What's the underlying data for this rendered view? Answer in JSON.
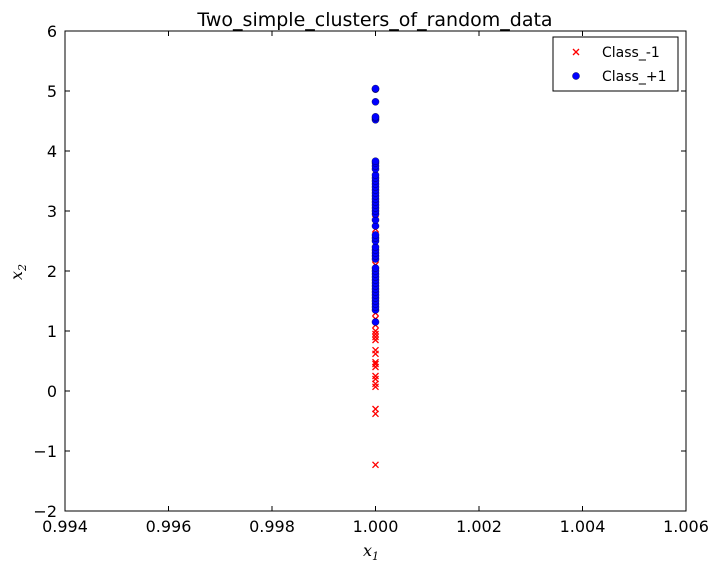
{
  "chart_data": {
    "type": "scatter",
    "title": "Two_simple_clusters_of_random_data",
    "xlabel": "x",
    "xlabel_sub": "1",
    "ylabel": "x",
    "ylabel_sub": "2",
    "xlim": [
      0.994,
      1.006
    ],
    "ylim": [
      -2,
      6
    ],
    "xticks": [
      0.994,
      0.996,
      0.998,
      1.0,
      1.002,
      1.004,
      1.006
    ],
    "xtick_labels": [
      "0.994",
      "0.996",
      "0.998",
      "1.000",
      "1.002",
      "1.004",
      "1.006"
    ],
    "yticks": [
      -2,
      -1,
      0,
      1,
      2,
      3,
      4,
      5,
      6
    ],
    "ytick_labels": [
      "−2",
      "−1",
      "0",
      "1",
      "2",
      "3",
      "4",
      "5",
      "6"
    ],
    "grid": false,
    "legend_position": "top-right",
    "series": [
      {
        "name": "Class_-1",
        "marker": "x",
        "color": "#ff0000",
        "x": [
          1,
          1,
          1,
          1,
          1,
          1,
          1,
          1,
          1,
          1,
          1,
          1,
          1,
          1,
          1,
          1,
          1,
          1,
          1,
          1,
          1,
          1,
          1,
          1,
          1,
          1,
          1,
          1,
          1,
          1,
          1,
          1,
          1,
          1,
          1,
          1,
          1,
          1,
          1,
          1
        ],
        "y": [
          -1.23,
          -0.38,
          -0.3,
          0.07,
          0.12,
          0.2,
          0.25,
          0.4,
          0.45,
          0.48,
          0.62,
          0.68,
          0.85,
          0.9,
          0.95,
          1.0,
          1.1,
          1.2,
          1.3,
          1.4,
          1.5,
          1.6,
          1.7,
          1.8,
          1.9,
          2.0,
          2.1,
          2.2,
          2.3,
          2.45,
          2.6,
          2.7,
          2.8,
          2.9,
          2.95,
          3.0,
          3.1,
          3.2,
          3.3,
          3.4
        ]
      },
      {
        "name": "Class_+1",
        "marker": "o",
        "color": "#0000ff",
        "x": [
          1,
          1,
          1,
          1,
          1,
          1,
          1,
          1,
          1,
          1,
          1,
          1,
          1,
          1,
          1,
          1,
          1,
          1,
          1,
          1,
          1,
          1,
          1,
          1,
          1,
          1,
          1,
          1,
          1,
          1,
          1,
          1,
          1,
          1,
          1,
          1,
          1,
          1,
          1,
          1,
          1,
          1,
          1,
          1,
          1,
          1,
          1,
          1,
          1,
          1
        ],
        "y": [
          1.15,
          1.35,
          1.4,
          1.45,
          1.5,
          1.55,
          1.6,
          1.65,
          1.7,
          1.75,
          1.8,
          1.85,
          1.9,
          1.95,
          2.0,
          2.05,
          2.2,
          2.25,
          2.3,
          2.35,
          2.4,
          2.5,
          2.55,
          2.6,
          2.75,
          2.85,
          2.95,
          3.0,
          3.05,
          3.1,
          3.15,
          3.2,
          3.25,
          3.3,
          3.35,
          3.4,
          3.45,
          3.5,
          3.55,
          3.6,
          3.7,
          3.75,
          3.8,
          3.83,
          4.52,
          4.55,
          4.57,
          4.82,
          5.03,
          5.04
        ]
      }
    ]
  }
}
